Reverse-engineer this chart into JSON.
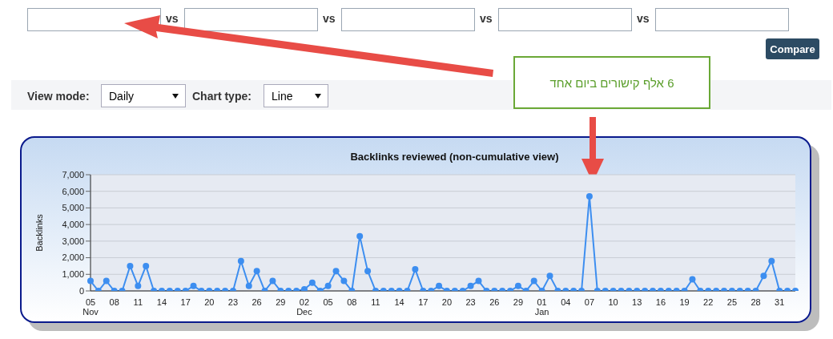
{
  "chart_data": {
    "type": "line",
    "title": "Backlinks reviewed (non-cumulative view)",
    "ylabel": "Backlinks",
    "categories": [
      "05 Nov",
      null,
      null,
      "08",
      null,
      null,
      "11",
      null,
      null,
      "14",
      null,
      null,
      "17",
      null,
      null,
      "20",
      null,
      null,
      "23",
      null,
      null,
      "26",
      null,
      null,
      "29",
      null,
      null,
      "02 Dec",
      null,
      null,
      "05",
      null,
      null,
      "08",
      null,
      null,
      "11",
      null,
      null,
      "14",
      null,
      null,
      "17",
      null,
      null,
      "20",
      null,
      null,
      "23",
      null,
      null,
      "26",
      null,
      null,
      "29",
      null,
      null,
      "01 Jan",
      null,
      null,
      "04",
      null,
      null,
      "07",
      null,
      null,
      "10",
      null,
      null,
      "13",
      null,
      null,
      "16",
      null,
      null,
      "19",
      null,
      null,
      "22",
      null,
      null,
      "25",
      null,
      null,
      "28",
      null,
      null,
      "31",
      null,
      null
    ],
    "series": [
      {
        "color": "#3d8ef0",
        "values": [
          600,
          0,
          600,
          0,
          0,
          1500,
          300,
          1500,
          0,
          0,
          0,
          0,
          0,
          300,
          0,
          0,
          0,
          0,
          0,
          1800,
          300,
          1200,
          0,
          600,
          0,
          0,
          0,
          100,
          500,
          0,
          300,
          1200,
          600,
          0,
          3300,
          1200,
          0,
          0,
          0,
          0,
          0,
          1300,
          0,
          0,
          300,
          0,
          0,
          0,
          300,
          600,
          0,
          0,
          0,
          0,
          300,
          0,
          600,
          0,
          900,
          0,
          0,
          0,
          0,
          5700,
          0,
          0,
          0,
          0,
          0,
          0,
          0,
          0,
          0,
          0,
          0,
          0,
          700,
          0,
          0,
          0,
          0,
          0,
          0,
          0,
          0,
          900,
          1800,
          0,
          0,
          0
        ]
      }
    ],
    "ylim": [
      0,
      7000
    ],
    "yticks": [
      0,
      {
        "value": 1000,
        "label": "1,000"
      },
      {
        "value": 2000,
        "label": "2,000"
      },
      {
        "value": 3000,
        "label": "3,000"
      },
      {
        "value": 4000,
        "label": "4,000"
      },
      {
        "value": 5000,
        "label": "5,000"
      },
      {
        "value": 6000,
        "label": "6,000"
      },
      {
        "value": 7000,
        "label": "7,000"
      }
    ],
    "grid": "y",
    "marker": "circle",
    "line_style": "solid",
    "annotations": [
      "vs",
      "vs",
      "vs",
      "vs",
      "Compare",
      "View mode:",
      "Daily",
      "Chart type:",
      "Line",
      "6 אלף קישורים ביום אחד"
    ]
  }
}
